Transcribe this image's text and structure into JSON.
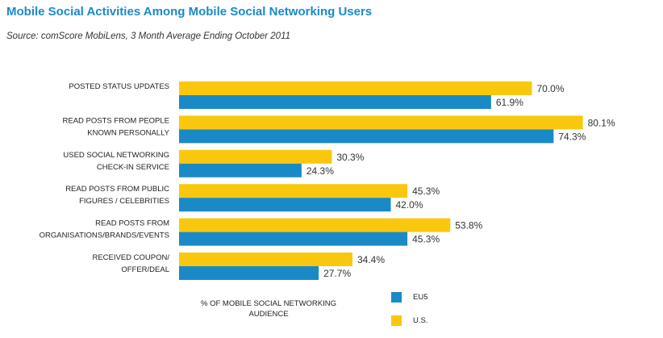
{
  "header": {
    "title": "Mobile Social Activities Among Mobile Social Networking Users",
    "subtitle": "Source: comScore MobiLens, 3 Month Average Ending October 2011"
  },
  "colors": {
    "us": "#f9c80e",
    "eu5": "#1a8ac6",
    "title": "#1a8ac6"
  },
  "chart_data": {
    "type": "bar",
    "orientation": "horizontal",
    "title": "Mobile Social Activities Among Mobile Social Networking Users",
    "subtitle": "Source: comScore MobiLens, 3 Month Average Ending October 2011",
    "xlabel": "% OF MOBILE SOCIAL NETWORKING AUDIENCE",
    "categories": [
      [
        "POSTED STATUS UPDATES"
      ],
      [
        "READ POSTS FROM PEOPLE",
        "KNOWN PERSONALLY"
      ],
      [
        "USED SOCIAL NETWORKING",
        "CHECK-IN SERVICE"
      ],
      [
        "READ POSTS FROM PUBLIC",
        "FIGURES / CELEBRITIES"
      ],
      [
        "READ POSTS FROM",
        "ORGANISATIONS/BRANDS/EVENTS"
      ],
      [
        "RECEIVED COUPON/",
        "OFFER/DEAL"
      ]
    ],
    "series": [
      {
        "name": "U.S.",
        "color": "#f9c80e",
        "values": [
          70.0,
          80.1,
          30.3,
          45.3,
          53.8,
          34.4
        ]
      },
      {
        "name": "EU5",
        "color": "#1a8ac6",
        "values": [
          61.9,
          74.3,
          24.3,
          42.0,
          45.3,
          27.7
        ]
      }
    ],
    "value_suffix": "%",
    "xlim": [
      0,
      100
    ],
    "grid": false,
    "legend": {
      "position": "bottom-center",
      "items": [
        {
          "name": "EU5",
          "color": "#1a8ac6"
        },
        {
          "name": "U.S.",
          "color": "#f9c80e"
        }
      ]
    }
  }
}
